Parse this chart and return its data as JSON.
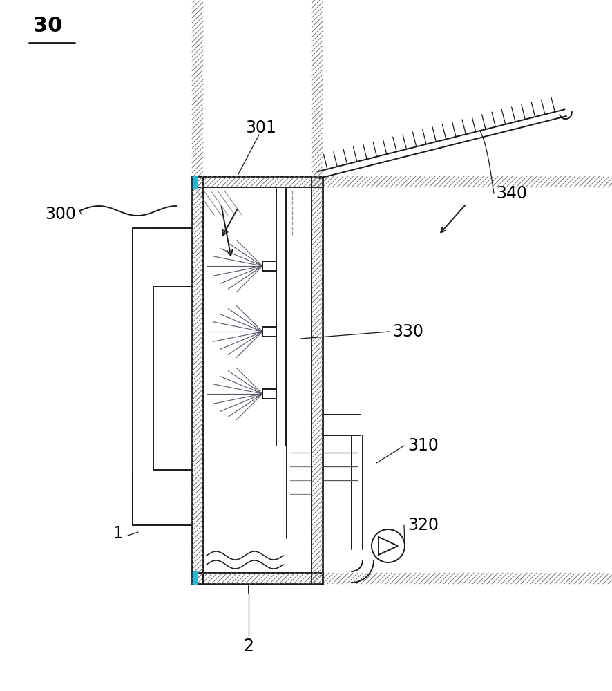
{
  "bg_color": "#ffffff",
  "line_color": "#1a1a1a",
  "cyan_color": "#29b6d0",
  "figsize": [
    8.86,
    10.0
  ],
  "dpi": 100,
  "labels": {
    "30": "30",
    "1": "1",
    "2": "2",
    "300": "300",
    "301": "301",
    "310": "310",
    "320": "320",
    "330": "330",
    "340": "340"
  }
}
